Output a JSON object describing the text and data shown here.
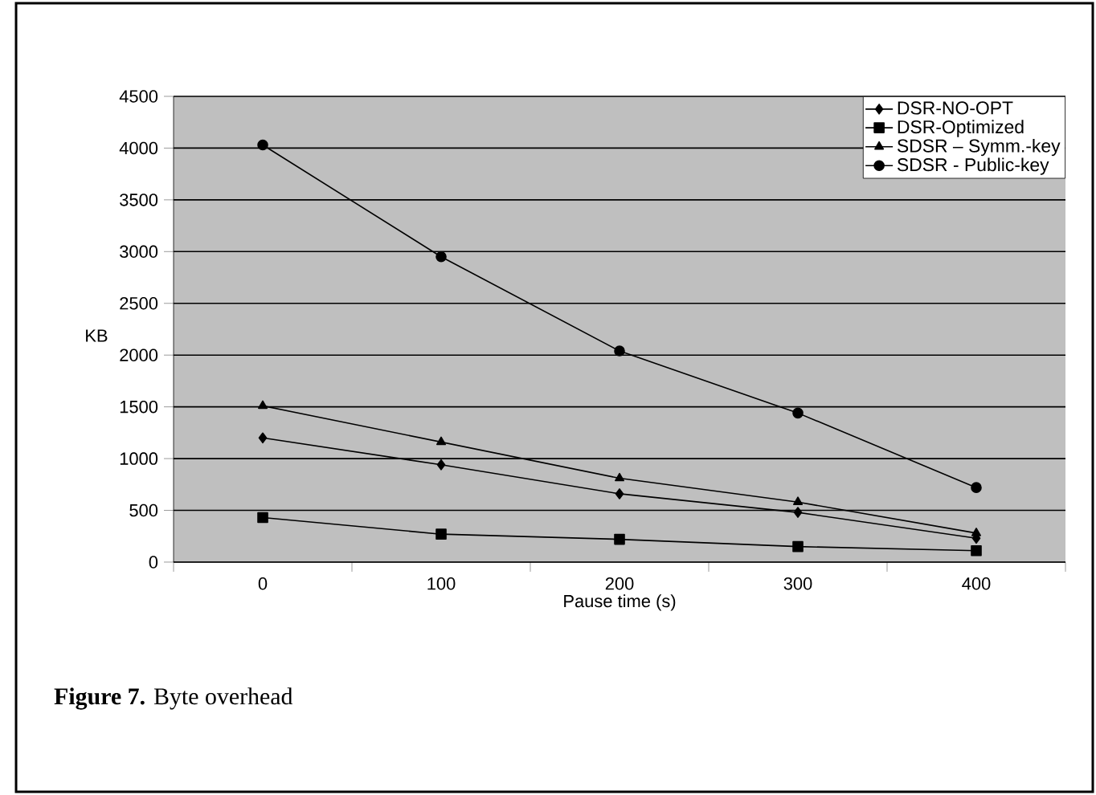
{
  "chart_data": {
    "type": "line",
    "xlabel": "Pause time (s)",
    "ylabel": "KB",
    "categories": [
      "0",
      "100",
      "200",
      "300",
      "400"
    ],
    "series": [
      {
        "name": "DSR-NO-OPT",
        "color": "#000000",
        "marker": "diamond",
        "values": [
          1200,
          940,
          660,
          480,
          230
        ]
      },
      {
        "name": "DSR-Optimized",
        "color": "#000000",
        "marker": "square",
        "values": [
          430,
          270,
          220,
          150,
          110
        ]
      },
      {
        "name": "SDSR – Symm.-key",
        "color": "#000000",
        "marker": "triangle",
        "values": [
          1510,
          1160,
          810,
          580,
          280
        ]
      },
      {
        "name": "SDSR - Public-key",
        "color": "#000000",
        "marker": "circle",
        "values": [
          4030,
          2950,
          2040,
          1440,
          720
        ]
      }
    ],
    "ylim": [
      0,
      4500
    ],
    "yticks": [
      0,
      500,
      1000,
      1500,
      2000,
      2500,
      3000,
      3500,
      4000,
      4500
    ],
    "grid": "y",
    "legend": "top right",
    "line_style": "solid",
    "annotations": [
      "**Figure 7.** Byte overhead"
    ]
  }
}
